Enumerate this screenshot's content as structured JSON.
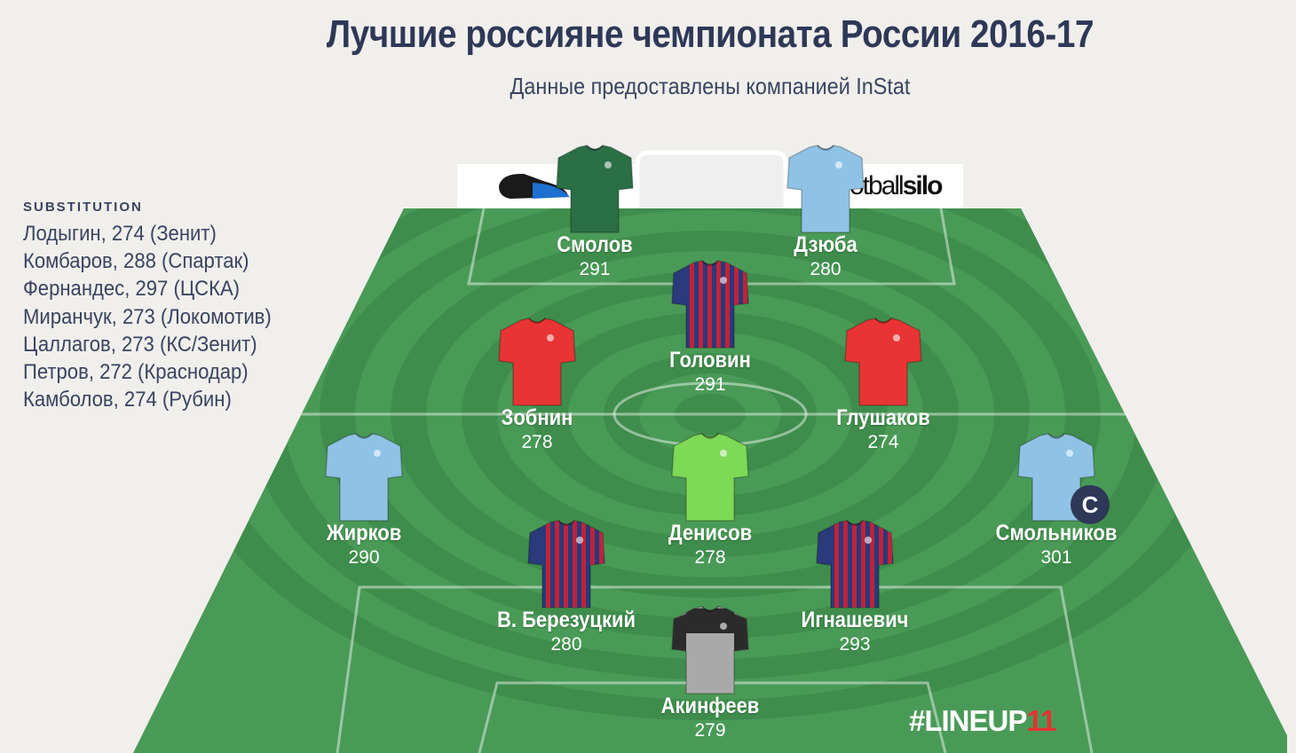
{
  "header": {
    "title": "Лучшие россияне чемпионата России 2016-17",
    "subtitle": "Данные предоставлены компанией InStat"
  },
  "substitutions": {
    "heading": "SUBSTITUTION",
    "items": [
      "Лодыгин, 274 (Зенит)",
      "Комбаров, 288 (Спартак)",
      "Фернандес, 297 (ЦСКА)",
      "Миранчук, 273 (Локомотив)",
      "Цаллагов, 273 (КС/Зенит)",
      "Петров, 272 (Краснодар)",
      "Камболов, 274 (Рубин)"
    ]
  },
  "sponsor": {
    "text_light": "otball",
    "text_bold": "silo"
  },
  "hashtag": {
    "main": "#LINEUP",
    "number": "11"
  },
  "colors": {
    "pitch_light": "#4a9a57",
    "pitch_dark": "#3f8d4c",
    "title": "#2e3857",
    "accent_red": "#e53232"
  },
  "players": [
    {
      "name": "Смолов",
      "rating": "291",
      "kit": "#2b6f45",
      "kit_type": "plain"
    },
    {
      "name": "Дзюба",
      "rating": "280",
      "kit": "#8fc3e6",
      "kit_type": "plain"
    },
    {
      "name": "Головин",
      "rating": "291",
      "kit": "#2a3a7a",
      "kit_type": "striped",
      "stripe": "#c0223a"
    },
    {
      "name": "Зобнин",
      "rating": "278",
      "kit": "#e83434",
      "kit_type": "plain"
    },
    {
      "name": "Глушаков",
      "rating": "274",
      "kit": "#e83434",
      "kit_type": "plain"
    },
    {
      "name": "Жирков",
      "rating": "290",
      "kit": "#8fc3e6",
      "kit_type": "plain"
    },
    {
      "name": "Денисов",
      "rating": "278",
      "kit": "#7ed957",
      "kit_type": "plain"
    },
    {
      "name": "Смольников",
      "rating": "301",
      "kit": "#8fc3e6",
      "kit_type": "plain",
      "captain": "C"
    },
    {
      "name": "В. Березуцкий",
      "rating": "280",
      "kit": "#2a3a7a",
      "kit_type": "striped",
      "stripe": "#c0223a"
    },
    {
      "name": "Игнашевич",
      "rating": "293",
      "kit": "#2a3a7a",
      "kit_type": "striped",
      "stripe": "#c0223a"
    },
    {
      "name": "Акинфеев",
      "rating": "279",
      "kit": "#a9a9a9",
      "kit_type": "goalkeeper",
      "sleeve": "#2b2b2b"
    }
  ]
}
